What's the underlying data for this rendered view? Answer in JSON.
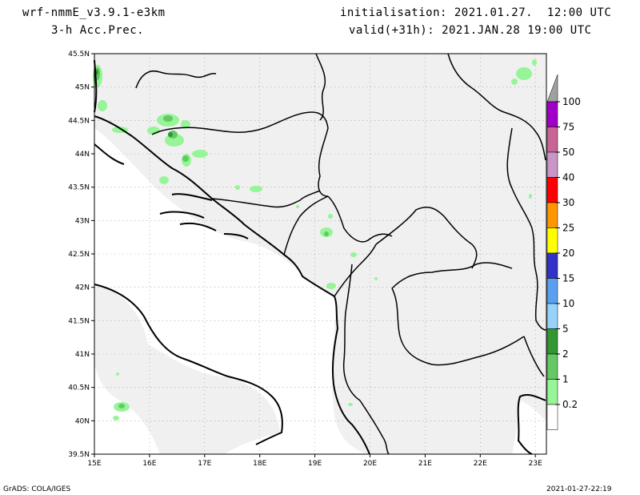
{
  "header": {
    "model": "wrf-nmmE_v3.9.1-e3km",
    "field": "3-h Acc.Prec.",
    "init": "initialisation: 2021.01.27.  12:00 UTC",
    "valid": "valid(+31h): 2021.JAN.28 19:00 UTC"
  },
  "map": {
    "lat_labels": [
      "45.5N",
      "45N",
      "44.5N",
      "44N",
      "43.5N",
      "43N",
      "42.5N",
      "42N",
      "41.5N",
      "41N",
      "40.5N",
      "40N",
      "39.5N"
    ],
    "lon_labels": [
      "15E",
      "16E",
      "17E",
      "18E",
      "19E",
      "20E",
      "21E",
      "22E",
      "23E"
    ],
    "lat_range": [
      39.5,
      45.5
    ],
    "lon_range": [
      15,
      23.2
    ],
    "land_color": "#f0f0f0",
    "grid": true
  },
  "legend": {
    "labels": [
      "100",
      "75",
      "50",
      "40",
      "30",
      "25",
      "20",
      "15",
      "10",
      "5",
      "2",
      "1",
      "0.2"
    ],
    "colors": [
      "#a000c8",
      "#c86496",
      "#c896c8",
      "#ff0000",
      "#ff9600",
      "#ffff00",
      "#3232c8",
      "#5aa0f0",
      "#96d2fa",
      "#329632",
      "#64c864",
      "#96f596",
      "#ffffff"
    ],
    "top_color": "#a0a0a0"
  },
  "footer": {
    "left": "GrADS: COLA/IGES",
    "right": "2021-01-27-22:19"
  }
}
